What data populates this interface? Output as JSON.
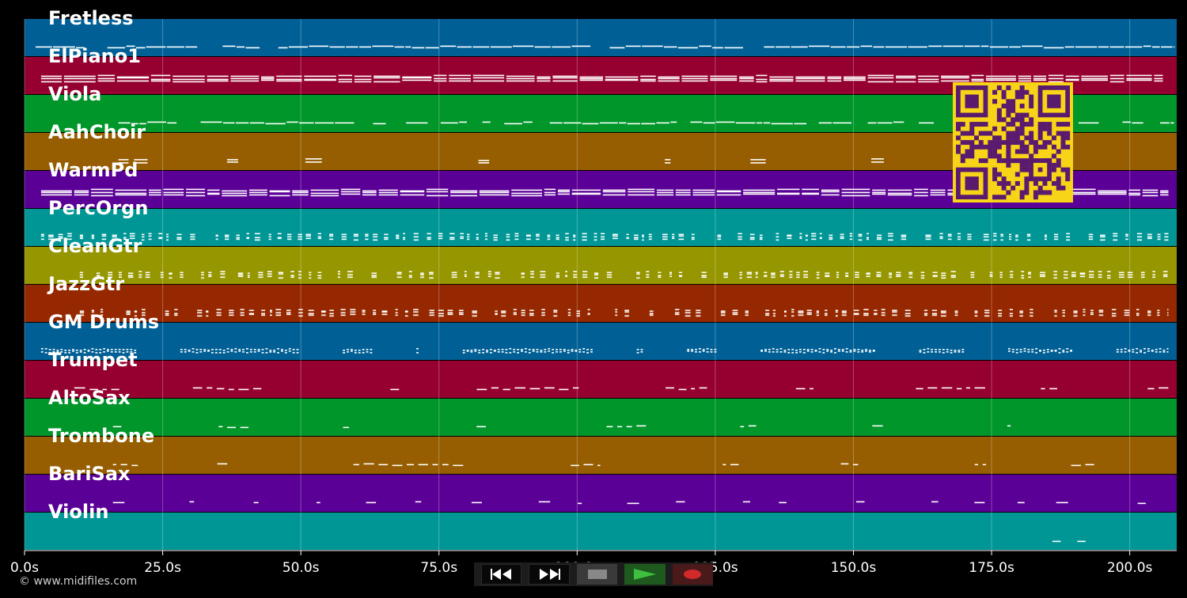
{
  "app": {
    "copyright": "© www.midifiles.com"
  },
  "roll": {
    "time_max": 208.5,
    "tick_step": 25,
    "tick_labels": [
      "0.0s",
      "25.0s",
      "50.0s",
      "75.0s",
      "100.0s",
      "125.0s",
      "150.0s",
      "175.0s",
      "200.0s"
    ]
  },
  "tracks": [
    {
      "name": "Fretless",
      "color": "#006096",
      "pattern": "legato",
      "density": 0.85,
      "start": 2,
      "end": 208
    },
    {
      "name": "ElPiano1",
      "color": "#960030",
      "pattern": "chords",
      "density": 0.95,
      "start": 3,
      "end": 206
    },
    {
      "name": "Viola",
      "color": "#00962a",
      "pattern": "legato",
      "density": 0.8,
      "start": 17,
      "end": 208
    },
    {
      "name": "AahChoir",
      "color": "#965e00",
      "pattern": "sparse_chords",
      "density": 0.3,
      "start": 17,
      "end": 208
    },
    {
      "name": "WarmPd",
      "color": "#5b0096",
      "pattern": "chords",
      "density": 0.95,
      "start": 3,
      "end": 207
    },
    {
      "name": "PercOrgn",
      "color": "#009696",
      "pattern": "stabs",
      "density": 0.8,
      "start": 3,
      "end": 207
    },
    {
      "name": "CleanGtr",
      "color": "#969600",
      "pattern": "stabs",
      "density": 0.85,
      "start": 10,
      "end": 207
    },
    {
      "name": "JazzGtr",
      "color": "#962800",
      "pattern": "stabs",
      "density": 0.85,
      "start": 10,
      "end": 207
    },
    {
      "name": "GM Drums",
      "color": "#006096",
      "pattern": "drums",
      "density": 0.95,
      "start": 3,
      "end": 207
    },
    {
      "name": "Trumpet",
      "color": "#960030",
      "pattern": "phrases",
      "density": 0.6,
      "start": 9,
      "end": 207
    },
    {
      "name": "AltoSax",
      "color": "#00962a",
      "pattern": "phrases",
      "density": 0.5,
      "start": 16,
      "end": 195
    },
    {
      "name": "Trombone",
      "color": "#965e00",
      "pattern": "phrases",
      "density": 0.6,
      "start": 16,
      "end": 207
    },
    {
      "name": "BariSax",
      "color": "#5b0096",
      "pattern": "sparse",
      "density": 0.4,
      "start": 16,
      "end": 207
    },
    {
      "name": "Violin",
      "color": "#009696",
      "pattern": "tail",
      "density": 0.2,
      "start": 186,
      "end": 195
    }
  ],
  "transport": {
    "rewind_icon": "rewind-icon",
    "fast_forward_icon": "fast-forward-icon",
    "stop_icon": "stop-icon",
    "play_icon": "play-icon",
    "record_icon": "record-icon",
    "colors": {
      "stop": "#888888",
      "play": "#3fbf3f",
      "record": "#d02a2a"
    }
  },
  "qr_code": {
    "icon": "qr-code-icon",
    "fg": "#5a1a6e",
    "bg": "#f7d417"
  }
}
